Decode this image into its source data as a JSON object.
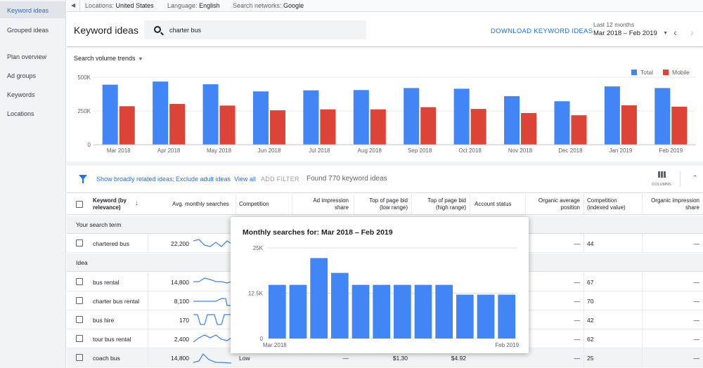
{
  "sidebar": {
    "items": [
      "Keyword ideas",
      "Grouped ideas",
      "Plan overview",
      "Ad groups",
      "Keywords",
      "Locations"
    ]
  },
  "topbar": {
    "locations_label": "Locations:",
    "locations_value": "United States",
    "language_label": "Language:",
    "language_value": "English",
    "networks_label": "Search networks:",
    "networks_value": "Google"
  },
  "header": {
    "title": "Keyword ideas",
    "search_value": "charter bus",
    "download_label": "DOWNLOAD KEYWORD IDEAS",
    "range_label": "Last 12 months",
    "range_value": "Mar 2018 – Feb 2019"
  },
  "trend": {
    "selector_label": "Search volume trends",
    "legend": [
      "Total",
      "Mobile"
    ],
    "colors": {
      "total": "#4285f4",
      "mobile": "#db4437"
    }
  },
  "chart_data": [
    {
      "type": "bar",
      "categories": [
        "Mar 2018",
        "Apr 2018",
        "May 2018",
        "Jun 2018",
        "Jul 2018",
        "Aug 2018",
        "Sep 2018",
        "Oct 2018",
        "Nov 2018",
        "Dec 2018",
        "Jan 2019",
        "Feb 2019"
      ],
      "series": [
        {
          "name": "Total",
          "values": [
            445000,
            468000,
            448000,
            395000,
            403000,
            405000,
            420000,
            415000,
            360000,
            322000,
            432000,
            420000
          ]
        },
        {
          "name": "Mobile",
          "values": [
            285000,
            302000,
            290000,
            255000,
            262000,
            262000,
            278000,
            265000,
            235000,
            218000,
            292000,
            282000
          ]
        }
      ],
      "y_ticks": [
        "0",
        "250K",
        "500K"
      ],
      "ylim": [
        0,
        500000
      ],
      "legend_position": "top-right",
      "grid": true
    },
    {
      "type": "bar",
      "title": "Monthly searches for: Mar 2018 – Feb 2019",
      "categories": [
        "Mar 2018",
        "Apr 2018",
        "May 2018",
        "Jun 2018",
        "Jul 2018",
        "Aug 2018",
        "Sep 2018",
        "Oct 2018",
        "Nov 2018",
        "Dec 2018",
        "Jan 2019",
        "Feb 2019"
      ],
      "values": [
        14800,
        14800,
        22200,
        18100,
        14800,
        14800,
        14800,
        14800,
        14800,
        12100,
        12100,
        12100
      ],
      "y_ticks": [
        "0",
        "12.5K",
        "25K"
      ],
      "x_tick_labels": [
        "Mar 2018",
        "Feb 2019"
      ],
      "ylim": [
        0,
        25000
      ],
      "grid": true
    }
  ],
  "filters": {
    "link1": "Show broadly related ideas;",
    "link2": "Exclude adult ideas",
    "view_all": "View all",
    "add_filter": "ADD FILTER",
    "found": "Found 770 keyword ideas",
    "columns_label": "COLUMNS"
  },
  "table": {
    "headers": {
      "keyword1": "Keyword (by",
      "keyword2": "relevance)",
      "avg": "Avg. monthly searches",
      "competition": "Competition",
      "adimp1": "Ad impression",
      "adimp2": "share",
      "low1": "Top of page bid",
      "low2": "(low range)",
      "high1": "Top of page bid",
      "high2": "(high range)",
      "account": "Account status",
      "org1": "Organic average",
      "org2": "position",
      "comp1": "Competition",
      "comp2": "(indexed value)",
      "orgimp1": "Organic impression",
      "orgimp2": "share"
    },
    "group_search_term": "Your search term",
    "group_idea": "Idea",
    "rows": [
      {
        "keyword": "chartered bus",
        "avg": "22,200",
        "org": "—",
        "comp_index": "44",
        "orgimp": "—"
      },
      {
        "keyword": "bus rental",
        "avg": "14,800",
        "org": "—",
        "comp_index": "67",
        "orgimp": "—"
      },
      {
        "keyword": "charter bus rental",
        "avg": "8,100",
        "org": "—",
        "comp_index": "70",
        "orgimp": "—"
      },
      {
        "keyword": "bus hire",
        "avg": "170",
        "org": "—",
        "comp_index": "42",
        "orgimp": "—"
      },
      {
        "keyword": "tour bus rental",
        "avg": "2,400",
        "org": "—",
        "comp_index": "62",
        "orgimp": "—"
      },
      {
        "keyword": "coach bus",
        "avg": "14,800",
        "competition": "Low",
        "adimp": "—",
        "low": "$1.30",
        "high": "$4.92",
        "org": "—",
        "comp_index": "25",
        "orgimp": "—"
      }
    ]
  }
}
